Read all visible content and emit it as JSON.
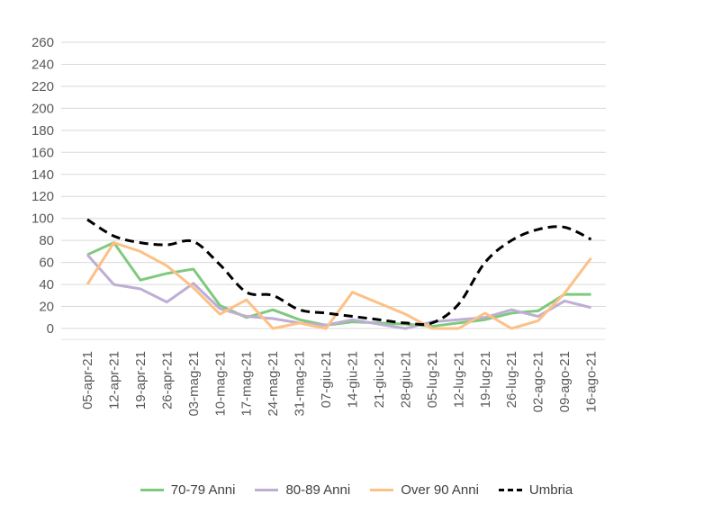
{
  "chart_data": {
    "type": "line",
    "title": "",
    "xlabel": "",
    "ylabel": "",
    "ylim": [
      0,
      260
    ],
    "yticks": [
      0,
      20,
      40,
      60,
      80,
      100,
      120,
      140,
      160,
      180,
      200,
      220,
      240,
      260
    ],
    "grid": true,
    "legend_position": "bottom",
    "categories": [
      "05-apr-21",
      "12-apr-21",
      "19-apr-21",
      "26-apr-21",
      "03-mag-21",
      "10-mag-21",
      "17-mag-21",
      "24-mag-21",
      "31-mag-21",
      "07-giu-21",
      "14-giu-21",
      "21-giu-21",
      "28-giu-21",
      "05-lug-21",
      "12-lug-21",
      "19-lug-21",
      "26-lug-21",
      "02-ago-21",
      "09-ago-21",
      "16-ago-21"
    ],
    "series": [
      {
        "name": "70-79 Anni",
        "color": "#7fc97f",
        "dash": false,
        "values": [
          67,
          78,
          44,
          50,
          54,
          21,
          10,
          17,
          8,
          3,
          6,
          5,
          4,
          2,
          5,
          8,
          14,
          16,
          31,
          31
        ]
      },
      {
        "name": "80-89 Anni",
        "color": "#beaed4",
        "dash": false,
        "values": [
          67,
          40,
          36,
          24,
          41,
          18,
          11,
          9,
          5,
          3,
          8,
          4,
          0,
          6,
          8,
          10,
          17,
          11,
          25,
          19
        ]
      },
      {
        "name": "Over 90 Anni",
        "color": "#fdc086",
        "dash": false,
        "values": [
          40,
          78,
          70,
          57,
          37,
          13,
          26,
          0,
          5,
          0,
          33,
          23,
          13,
          0,
          0,
          14,
          0,
          7,
          32,
          64
        ]
      },
      {
        "name": "Umbria",
        "color": "#000000",
        "dash": true,
        "values": [
          99,
          84,
          78,
          76,
          79,
          58,
          33,
          30,
          17,
          14,
          11,
          8,
          5,
          5,
          22,
          60,
          80,
          90,
          92,
          81
        ]
      }
    ]
  }
}
